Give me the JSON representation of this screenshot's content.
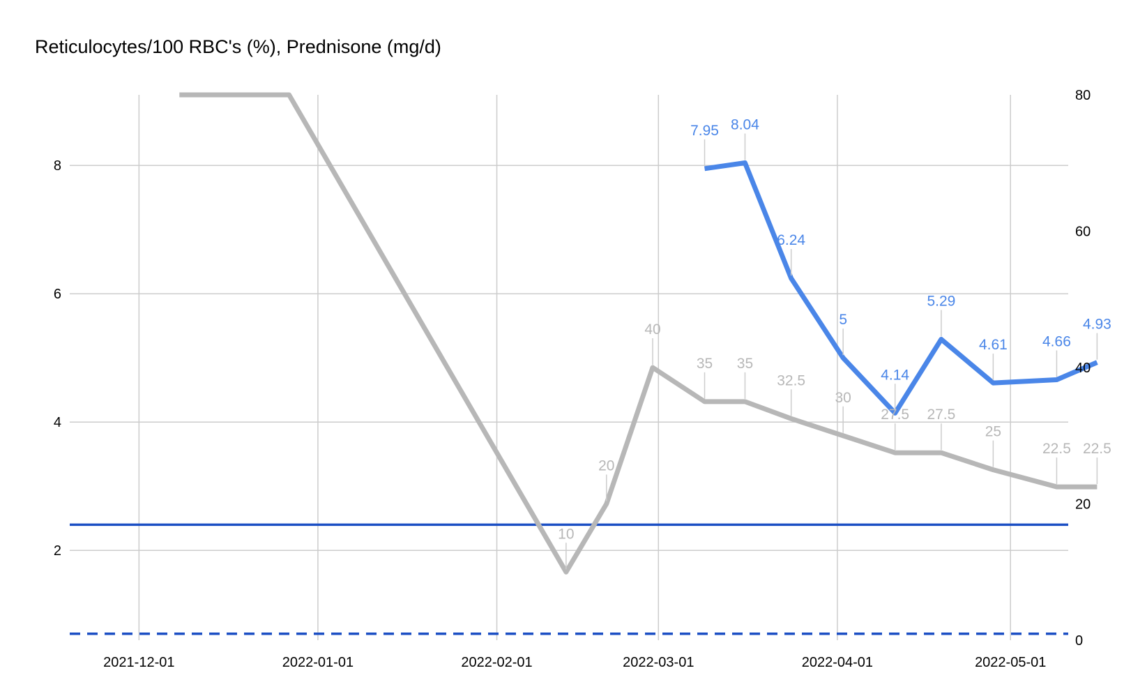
{
  "chart_data": {
    "type": "line",
    "title": "Reticulocytes/100 RBC's (%), Prednisone (mg/d)",
    "xlabel": "",
    "ylabel": "",
    "x_ticks": [
      "2021-12-01",
      "2022-01-01",
      "2022-02-01",
      "2022-03-01",
      "2022-04-01",
      "2022-05-01"
    ],
    "x_range": [
      "2021-11-19",
      "2022-05-11"
    ],
    "y_left": {
      "ticks": [
        2,
        4,
        6,
        8
      ],
      "range": [
        0.6,
        9.1
      ]
    },
    "y_right": {
      "ticks": [
        0,
        20,
        40,
        60,
        80
      ],
      "range": [
        0,
        80
      ]
    },
    "grid": true,
    "legend": "none",
    "series": [
      {
        "axis": "left",
        "color": "#4a86e8",
        "points": [
          {
            "x": "2022-03-09",
            "y": 7.95,
            "label": "7.95"
          },
          {
            "x": "2022-03-16",
            "y": 8.04,
            "label": "8.04"
          },
          {
            "x": "2022-03-24",
            "y": 6.24,
            "label": "6.24"
          },
          {
            "x": "2022-04-02",
            "y": 5,
            "label": "5"
          },
          {
            "x": "2022-04-11",
            "y": 4.14,
            "label": "4.14"
          },
          {
            "x": "2022-04-19",
            "y": 5.29,
            "label": "5.29"
          },
          {
            "x": "2022-04-28",
            "y": 4.61,
            "label": "4.61"
          },
          {
            "x": "2022-05-09",
            "y": 4.66,
            "label": "4.66"
          },
          {
            "x": "2022-05-16",
            "y": 4.93,
            "label": "4.93"
          }
        ]
      },
      {
        "axis": "right",
        "color": "#b7b7b7",
        "points": [
          {
            "x": "2021-12-08",
            "y": 80,
            "label": ""
          },
          {
            "x": "2021-12-27",
            "y": 80,
            "label": ""
          },
          {
            "x": "2022-02-13",
            "y": 10,
            "label": "10"
          },
          {
            "x": "2022-02-20",
            "y": 20,
            "label": "20"
          },
          {
            "x": "2022-02-28",
            "y": 40,
            "label": "40"
          },
          {
            "x": "2022-03-09",
            "y": 35,
            "label": "35"
          },
          {
            "x": "2022-03-16",
            "y": 35,
            "label": "35"
          },
          {
            "x": "2022-03-24",
            "y": 32.5,
            "label": "32.5"
          },
          {
            "x": "2022-04-02",
            "y": 30,
            "label": "30"
          },
          {
            "x": "2022-04-11",
            "y": 27.5,
            "label": "27.5"
          },
          {
            "x": "2022-04-19",
            "y": 27.5,
            "label": "27.5"
          },
          {
            "x": "2022-04-28",
            "y": 25,
            "label": "25"
          },
          {
            "x": "2022-05-09",
            "y": 22.5,
            "label": "22.5"
          },
          {
            "x": "2022-05-16",
            "y": 22.5,
            "label": "22.5"
          }
        ]
      }
    ],
    "reference_lines": [
      {
        "axis": "left",
        "y": 2.4,
        "color": "#1c4fc4",
        "style": "solid"
      },
      {
        "axis": "left",
        "y": 0.7,
        "color": "#1c4fc4",
        "style": "dashed"
      }
    ]
  }
}
